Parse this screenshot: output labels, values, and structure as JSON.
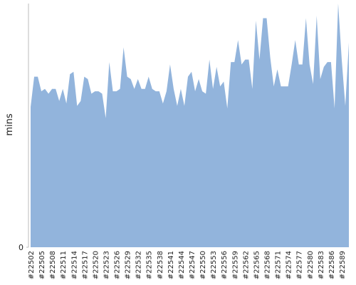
{
  "chart_data": {
    "type": "area",
    "y_label": "mins",
    "color": "#92b4dc",
    "categories": [
      "#22502",
      null,
      null,
      "#22505",
      null,
      null,
      "#22508",
      null,
      null,
      "#22511",
      null,
      null,
      "#22514",
      null,
      null,
      "#22517",
      null,
      null,
      "#22520",
      null,
      null,
      "#22523",
      null,
      null,
      "#22526",
      null,
      null,
      "#22529",
      null,
      null,
      "#22532",
      null,
      null,
      "#22535",
      null,
      null,
      "#22538",
      null,
      null,
      "#22541",
      null,
      null,
      "#22544",
      null,
      null,
      "#22547",
      null,
      null,
      "#22550",
      null,
      null,
      "#22553",
      null,
      null,
      "#22556",
      null,
      null,
      "#22559",
      null,
      null,
      "#22562",
      null,
      null,
      "#22565",
      null,
      null,
      "#22568",
      null,
      null,
      "#22571",
      null,
      null,
      "#22574",
      null,
      null,
      "#22577",
      null,
      null,
      "#22580",
      null,
      null,
      "#22583",
      null,
      null,
      "#22586",
      null,
      null,
      "#22589",
      null,
      null
    ],
    "values": [
      57.6,
      70,
      70,
      64,
      65,
      63,
      65,
      65,
      60,
      65,
      59,
      71,
      72,
      58,
      60,
      70,
      69,
      63,
      64,
      64,
      63,
      53,
      76,
      64,
      64,
      65,
      82,
      70,
      69,
      65,
      69,
      65,
      65,
      70,
      65,
      64,
      64,
      59,
      64,
      75,
      65,
      58,
      65,
      58,
      70,
      72,
      64,
      69,
      64,
      63,
      77,
      65,
      74,
      66,
      68,
      57,
      76,
      76,
      85,
      75,
      77,
      77,
      65,
      93,
      77,
      94,
      94,
      78,
      66,
      73,
      66,
      66,
      66,
      75,
      85,
      75,
      75,
      94,
      75,
      67,
      95,
      69,
      74,
      76,
      76,
      57,
      100,
      77,
      58,
      84
    ],
    "ylim": [
      0,
      100
    ],
    "yticks": [
      0
    ]
  }
}
